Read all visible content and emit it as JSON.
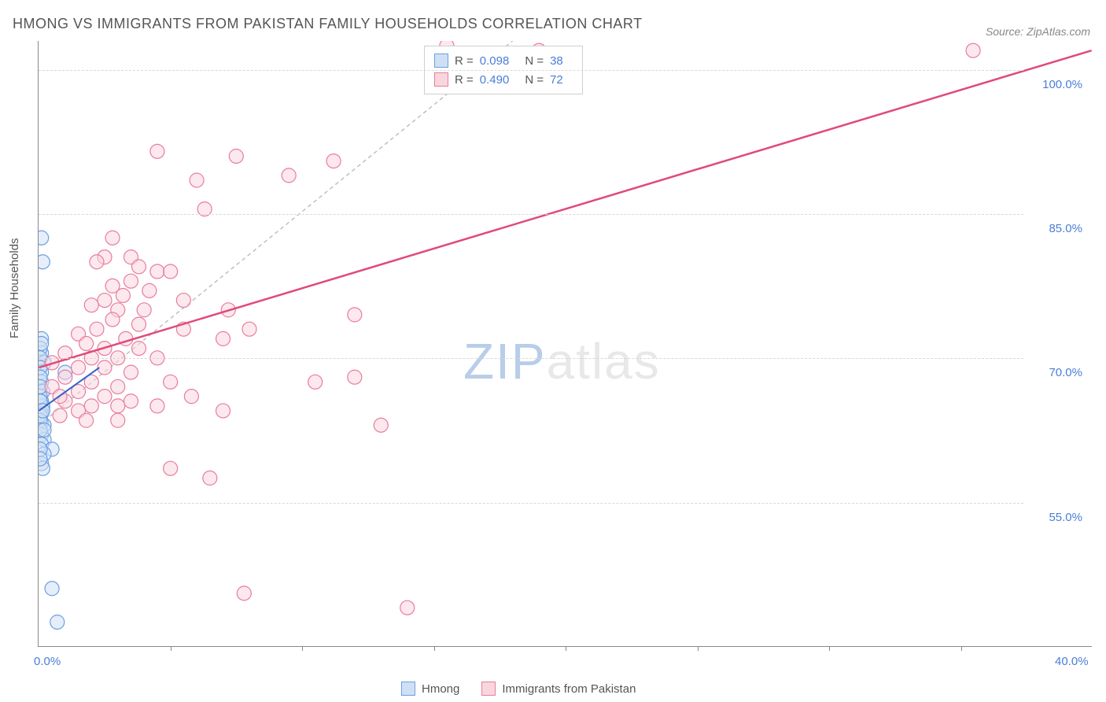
{
  "title": "HMONG VS IMMIGRANTS FROM PAKISTAN FAMILY HOUSEHOLDS CORRELATION CHART",
  "source": "Source: ZipAtlas.com",
  "ylabel": "Family Households",
  "watermark_a": "ZIP",
  "watermark_b": "atlas",
  "chart": {
    "type": "scatter",
    "xlim": [
      0,
      40
    ],
    "ylim": [
      40,
      103
    ],
    "xticks": [
      0,
      40
    ],
    "xtick_labels": [
      "0.0%",
      "40.0%"
    ],
    "xtick_minor": [
      5,
      10,
      15,
      20,
      25,
      30,
      35
    ],
    "yticks": [
      55,
      70,
      85,
      100
    ],
    "ytick_labels": [
      "55.0%",
      "70.0%",
      "85.0%",
      "100.0%"
    ],
    "grid_color": "#d8d8d8",
    "background_color": "#ffffff",
    "reference_line": {
      "color": "#bfbfbf",
      "dash": "5,4",
      "x1": 0,
      "y1": 63,
      "x2": 18,
      "y2": 103
    },
    "series": [
      {
        "name": "Hmong",
        "color_fill": "#cfe0f5",
        "color_stroke": "#6b9fe0",
        "marker_radius": 9,
        "fill_opacity": 0.55,
        "R": "0.098",
        "N": "38",
        "trend": {
          "x1": 0,
          "y1": 64.5,
          "x2": 2.3,
          "y2": 69,
          "color": "#2f63c4",
          "width": 2
        },
        "points": [
          [
            0.1,
            82.5
          ],
          [
            0.15,
            80
          ],
          [
            0.1,
            72
          ],
          [
            0.1,
            70.5
          ],
          [
            0.2,
            69.5
          ],
          [
            0.1,
            68.5
          ],
          [
            1.0,
            68.5
          ],
          [
            0.1,
            67.5
          ],
          [
            0.15,
            66.5
          ],
          [
            0.1,
            65.5
          ],
          [
            0.15,
            65
          ],
          [
            0.1,
            64.2
          ],
          [
            0.1,
            63.3
          ],
          [
            0.2,
            63
          ],
          [
            0.1,
            62
          ],
          [
            0.2,
            61.5
          ],
          [
            0.1,
            61
          ],
          [
            0.5,
            60.5
          ],
          [
            0.2,
            60
          ],
          [
            0.1,
            59
          ],
          [
            0.15,
            58.5
          ],
          [
            0.5,
            46
          ],
          [
            0.7,
            42.5
          ],
          [
            0.05,
            71
          ],
          [
            0.05,
            70
          ],
          [
            0.05,
            69
          ],
          [
            0.05,
            68
          ],
          [
            0.05,
            66
          ],
          [
            0.05,
            64
          ],
          [
            0.05,
            63.5
          ],
          [
            0.05,
            62.5
          ],
          [
            0.05,
            60.5
          ],
          [
            0.05,
            65.5
          ],
          [
            0.05,
            67
          ],
          [
            0.05,
            59.5
          ],
          [
            0.1,
            71.5
          ],
          [
            0.2,
            62.5
          ],
          [
            0.15,
            64.5
          ]
        ]
      },
      {
        "name": "Immigants from Pakistan",
        "label": "Immigrants from Pakistan",
        "color_fill": "#f9d6de",
        "color_stroke": "#e87ca0",
        "marker_radius": 9,
        "fill_opacity": 0.55,
        "R": "0.490",
        "N": "72",
        "trend": {
          "x1": 0,
          "y1": 69,
          "x2": 40,
          "y2": 102,
          "color": "#e04a7a",
          "width": 2.5
        },
        "points": [
          [
            15.5,
            102.5
          ],
          [
            35.5,
            102
          ],
          [
            19,
            102
          ],
          [
            4.5,
            91.5
          ],
          [
            7.5,
            91
          ],
          [
            6,
            88.5
          ],
          [
            9.5,
            89
          ],
          [
            11.2,
            90.5
          ],
          [
            6.3,
            85.5
          ],
          [
            2.8,
            82.5
          ],
          [
            2.5,
            80.5
          ],
          [
            3.5,
            80.5
          ],
          [
            2.2,
            80
          ],
          [
            3.8,
            79.5
          ],
          [
            4.5,
            79
          ],
          [
            5,
            79
          ],
          [
            3.5,
            78
          ],
          [
            2.8,
            77.5
          ],
          [
            4.2,
            77
          ],
          [
            3.2,
            76.5
          ],
          [
            2.5,
            76
          ],
          [
            5.5,
            76
          ],
          [
            2,
            75.5
          ],
          [
            3,
            75
          ],
          [
            4,
            75
          ],
          [
            7.2,
            75
          ],
          [
            2.8,
            74
          ],
          [
            3.8,
            73.5
          ],
          [
            2.2,
            73
          ],
          [
            12,
            74.5
          ],
          [
            1.5,
            72.5
          ],
          [
            3.3,
            72
          ],
          [
            5.5,
            73
          ],
          [
            8,
            73
          ],
          [
            1.8,
            71.5
          ],
          [
            2.5,
            71
          ],
          [
            3.8,
            71
          ],
          [
            7,
            72
          ],
          [
            1,
            70.5
          ],
          [
            2,
            70
          ],
          [
            3,
            70
          ],
          [
            4.5,
            70
          ],
          [
            0.5,
            69.5
          ],
          [
            1.5,
            69
          ],
          [
            2.5,
            69
          ],
          [
            3.5,
            68.5
          ],
          [
            12,
            68
          ],
          [
            1,
            68
          ],
          [
            2,
            67.5
          ],
          [
            3,
            67
          ],
          [
            5,
            67.5
          ],
          [
            1.5,
            66.5
          ],
          [
            2.5,
            66
          ],
          [
            3.5,
            65.5
          ],
          [
            1,
            65.5
          ],
          [
            2,
            65
          ],
          [
            3,
            65
          ],
          [
            4.5,
            65
          ],
          [
            5.8,
            66
          ],
          [
            1.5,
            64.5
          ],
          [
            7,
            64.5
          ],
          [
            0.8,
            64
          ],
          [
            1.8,
            63.5
          ],
          [
            3,
            63.5
          ],
          [
            10.5,
            67.5
          ],
          [
            13,
            63
          ],
          [
            5,
            58.5
          ],
          [
            6.5,
            57.5
          ],
          [
            7.8,
            45.5
          ],
          [
            14,
            44
          ],
          [
            0.5,
            67
          ],
          [
            0.8,
            66
          ]
        ]
      }
    ]
  },
  "legend_top": {
    "rows": [
      {
        "swatch_fill": "#cfe0f5",
        "swatch_border": "#6b9fe0",
        "rlabel": "R =",
        "rval": "0.098",
        "nlabel": "N =",
        "nval": "38"
      },
      {
        "swatch_fill": "#f9d6de",
        "swatch_border": "#e87ca0",
        "rlabel": "R =",
        "rval": "0.490",
        "nlabel": "N =",
        "nval": "72"
      }
    ]
  },
  "legend_bottom": {
    "items": [
      {
        "swatch_fill": "#cfe0f5",
        "swatch_border": "#6b9fe0",
        "label": "Hmong"
      },
      {
        "swatch_fill": "#f9d6de",
        "swatch_border": "#e87ca0",
        "label": "Immigrants from Pakistan"
      }
    ]
  }
}
